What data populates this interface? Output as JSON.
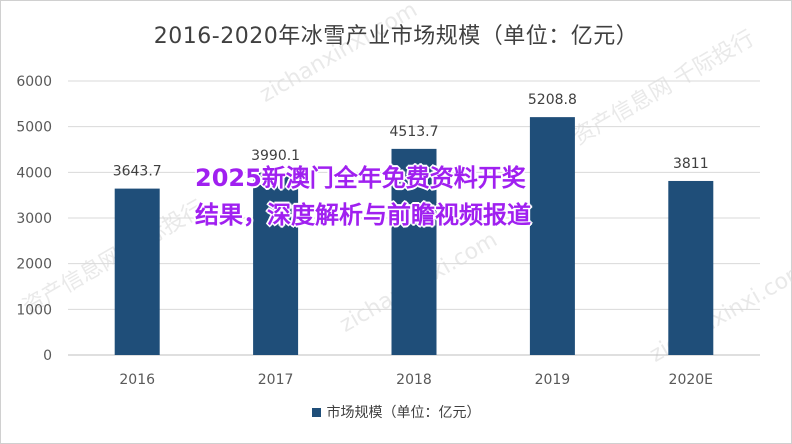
{
  "chart_data": {
    "type": "bar",
    "title": "2016-2020年冰雪产业市场规模（单位：亿元）",
    "categories": [
      "2016",
      "2017",
      "2018",
      "2019",
      "2020E"
    ],
    "series": [
      {
        "name": "市场规模（单位：亿元）",
        "values": [
          3643.7,
          3990.1,
          4513.7,
          5208.8,
          3811
        ],
        "labels": [
          "3643.7",
          "3990.1",
          "4513.7",
          "5208.8",
          "3811"
        ]
      }
    ],
    "yticks": [
      "0",
      "1000",
      "2000",
      "3000",
      "4000",
      "5000",
      "6000"
    ],
    "ylim": [
      0,
      6000
    ],
    "grid": true,
    "legend": "bottom",
    "bar_color": "#1f4e79"
  },
  "overlay": {
    "line1": "2025新澳门全年免费资料开奖",
    "line2": "结果，深度解析与前瞻视频报道",
    "color": "#a020f0"
  },
  "watermark": {
    "text1": "资产信息网 千际投行",
    "text2": "zichanxinxi.com"
  }
}
